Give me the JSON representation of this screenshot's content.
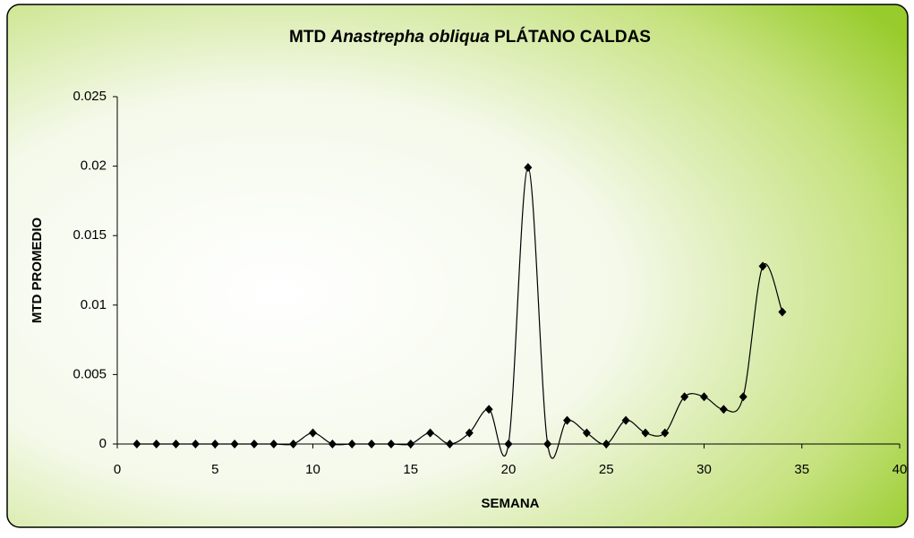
{
  "chart_data": {
    "type": "line",
    "title_parts": [
      "MTD",
      "Anastrepha obliqua",
      "PLÁTANO CALDAS"
    ],
    "x_label": "SEMANA",
    "y_label": "MTD PROMEDIO",
    "x": [
      1,
      2,
      3,
      4,
      5,
      6,
      7,
      8,
      9,
      10,
      11,
      12,
      13,
      14,
      15,
      16,
      17,
      18,
      19,
      20,
      21,
      22,
      23,
      24,
      25,
      26,
      27,
      28,
      29,
      30,
      31,
      32,
      33,
      34
    ],
    "series": [
      {
        "name": "MTD",
        "color": "#000000",
        "values": [
          0,
          0,
          0,
          0,
          0,
          0,
          0,
          0,
          0,
          0.0008,
          0,
          0,
          0,
          0,
          0,
          0.0008,
          0,
          0.0008,
          0.0025,
          0,
          0.0199,
          0,
          0.0017,
          0.0008,
          0,
          0.0017,
          0.0008,
          0.0008,
          0.0034,
          0.0034,
          0.0025,
          0.0034,
          0.0128,
          0.0095
        ]
      }
    ],
    "xlim": [
      0,
      40
    ],
    "xticks": [
      0,
      5,
      10,
      15,
      20,
      25,
      30,
      35,
      40
    ],
    "ylim": [
      0,
      0.025
    ],
    "yticks": [
      0,
      0.005,
      0.01,
      0.015,
      0.02,
      0.025
    ],
    "smooth": true,
    "marker": "diamond"
  }
}
